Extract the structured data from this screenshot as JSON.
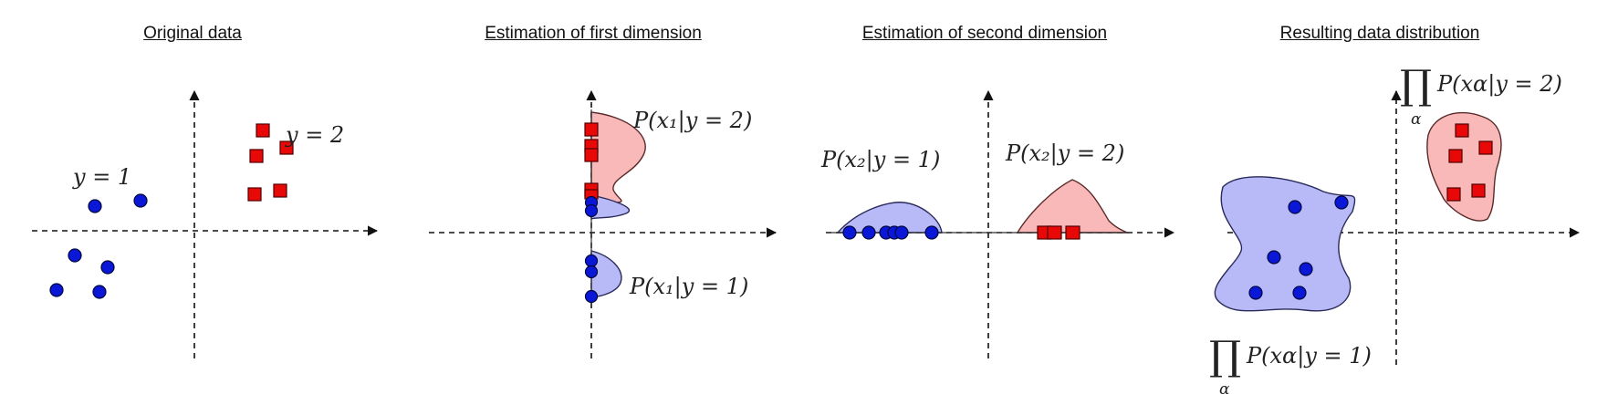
{
  "panels": [
    {
      "title": "Original data"
    },
    {
      "title": "Estimation of first dimension"
    },
    {
      "title": "Estimation of second dimension"
    },
    {
      "title": "Resulting data distribution"
    }
  ],
  "labels": {
    "y1": "y = 1",
    "y2": "y = 2",
    "p_x1_y2": "P(x₁|y = 2)",
    "p_x1_y1": "P(x₁|y = 1)",
    "p_x2_y1": "P(x₂|y = 1)",
    "p_x2_y2": "P(x₂|y = 2)",
    "prod_symbol": "∏",
    "prod_sub": "α",
    "p_xa_y2": "P(xα|y = 2)",
    "p_xa_y1": "P(xα|y = 1)"
  },
  "colors": {
    "class1_points": "#0a17d6",
    "class2_points": "#e80808",
    "class1_density": "#b8baf8",
    "class2_density": "#f9b9b9"
  }
}
